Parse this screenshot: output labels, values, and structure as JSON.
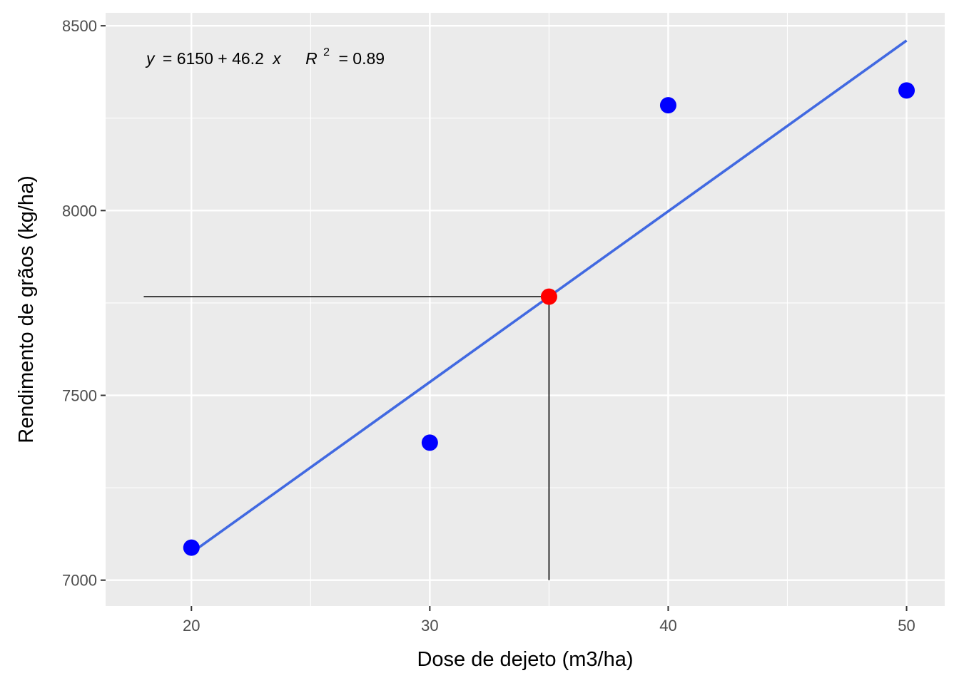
{
  "chart_data": {
    "type": "scatter",
    "title": "",
    "xlabel": "Dose de dejeto (m3/ha)",
    "ylabel": "Rendimento de grãos (kg/ha)",
    "xlim": [
      16.4,
      51.6
    ],
    "ylim": [
      6930,
      8535
    ],
    "x_ticks": [
      20,
      30,
      40,
      50
    ],
    "y_ticks": [
      7000,
      7500,
      8000,
      8500
    ],
    "grid": true,
    "points": [
      {
        "x": 20,
        "y": 7088
      },
      {
        "x": 30,
        "y": 7372
      },
      {
        "x": 40,
        "y": 8285
      },
      {
        "x": 50,
        "y": 8325
      }
    ],
    "point_color": "#0000ff",
    "fit": {
      "intercept": 6150,
      "slope": 46.2,
      "x_range": [
        20,
        50
      ],
      "color": "#4169e1"
    },
    "highlight": {
      "x": 35,
      "y": 7767,
      "color": "#ff0000",
      "ref_line_x_start": 18
    },
    "annotation": {
      "y_var": "y",
      "eq_rhs": "= 6150 + 46.2",
      "x_var": "x",
      "r2_var": "R",
      "r2_sup": "2",
      "r2_val": "= 0.89"
    }
  }
}
